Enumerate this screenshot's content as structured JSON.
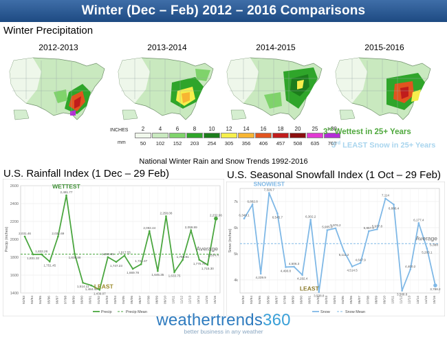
{
  "header": {
    "title": "Winter (Dec – Feb) 2012 – 2016 Comparisons"
  },
  "section_label": "Winter Precipitation",
  "maps": [
    {
      "year": "2012-2013"
    },
    {
      "year": "2013-2014"
    },
    {
      "year": "2014-2015"
    },
    {
      "year": "2015-2016"
    }
  ],
  "legend": {
    "inches_label": "INCHES",
    "mm_label": "mm",
    "bins": [
      {
        "in": "2",
        "mm": "50",
        "color": "#f1f8ec"
      },
      {
        "in": "4",
        "mm": "102",
        "color": "#c9e9bf"
      },
      {
        "in": "6",
        "mm": "152",
        "color": "#7fd36b"
      },
      {
        "in": "8",
        "mm": "203",
        "color": "#2fa52a"
      },
      {
        "in": "10",
        "mm": "254",
        "color": "#1c7d1c"
      },
      {
        "in": "12",
        "mm": "305",
        "color": "#f6ef4c"
      },
      {
        "in": "14",
        "mm": "356",
        "color": "#f7b533"
      },
      {
        "in": "16",
        "mm": "406",
        "color": "#e1541f"
      },
      {
        "in": "18",
        "mm": "457",
        "color": "#c01c1c"
      },
      {
        "in": "20",
        "mm": "508",
        "color": "#8a0f0f"
      },
      {
        "in": "25",
        "mm": "635",
        "color": "#e23ad3"
      },
      {
        "in": ">30",
        "mm": "762",
        "color": "#b32ed6"
      }
    ]
  },
  "notes": {
    "wettest_num": "3",
    "wettest_sup": "rd",
    "wettest_rest": " Wettest in 25+ Years",
    "snow_num": "3",
    "snow_sup": "rd",
    "snow_rest": " LEAST Snow in 25+ Years"
  },
  "national_heading": "National Winter Rain and Snow Trends 1992-2016",
  "rain_chart_title": "U.S. Rainfall Index (1 Dec – 29 Feb)",
  "snow_chart_title": "U.S. Seasonal Snowfall Index (1 Oct – 29 Feb)",
  "colors": {
    "rain": "#4aa63f",
    "snow": "#7fb8e6",
    "title_bar": "#2b5b96"
  },
  "chart_data": [
    {
      "type": "line",
      "title": "U.S. Rainfall Index (1 Dec – 29 Feb)",
      "ylabel": "Precip (inches)",
      "ylim": [
        1400,
        2600
      ],
      "yticks": [
        1400,
        1600,
        1800,
        2000,
        2200,
        2400,
        2600
      ],
      "categories": [
        "92/93",
        "93/94",
        "94/95",
        "95/96",
        "96/97",
        "97/98",
        "98/99",
        "99/00",
        "00/01",
        "01/02",
        "02/03",
        "03/04",
        "04/05",
        "05/06",
        "06/07",
        "07/08",
        "08/09",
        "09/10",
        "10/11",
        "11/12",
        "12/13",
        "13/14",
        "14/15",
        "15/16"
      ],
      "series": [
        {
          "name": "Precip",
          "values": [
            2031.46,
            1831.32,
            1832.28,
            1751.45,
            2031.69,
            2491.77,
            1839.88,
            1514.11,
            1484.48,
            1436.07,
            1800.55,
            1747.23,
            1817.55,
            1669.78,
            1721.37,
            2092.44,
            1645.35,
            2258.08,
            1633.75,
            1769.81,
            2099.89,
            1770.76,
            1715.3,
            2232.96
          ]
        },
        {
          "name": "Precip Mean",
          "values": [
            1834.4,
            1834.4,
            1834.4,
            1834.4,
            1834.4,
            1834.4,
            1834.4,
            1834.4,
            1834.4,
            1834.4,
            1834.4,
            1834.4,
            1834.4,
            1834.4,
            1834.4,
            1834.4,
            1834.4,
            1834.4,
            1834.4,
            1834.4,
            1834.4,
            1834.4,
            1834.4,
            1834.4
          ]
        }
      ],
      "point_labels": [
        "2,031.46",
        "1,831.32",
        "1,832.28",
        "1,751.45",
        "2,031.69",
        "2,491.77",
        "1,839.88",
        "1,514.11",
        "1,484.48",
        "1,436.07",
        "1,800.55",
        "1,747.23",
        "1,817.55",
        "1,669.78",
        "1,721.37",
        "2,092.44",
        "1,645.35",
        "2,258.08",
        "1,633.75",
        "1,769.81",
        "2,099.89",
        "1,770.76",
        "1,715.30",
        "2,232.96"
      ],
      "mean_label": "1,834.4",
      "annotations": {
        "high": "WETTEST",
        "low": "LEAST",
        "average": "Average"
      },
      "legend": [
        "Precip",
        "Precip Mean"
      ],
      "legend_position": "bottom",
      "grid": true
    },
    {
      "type": "line",
      "title": "U.S. Seasonal Snowfall Index (1 Oct – 29 Feb)",
      "ylabel": "Snow (inches)",
      "ylim": [
        3500,
        7500
      ],
      "yticks": [
        4000,
        5000,
        6000,
        7000
      ],
      "ytick_labels": [
        "4k",
        "5k",
        "6k",
        "7k"
      ],
      "categories": [
        "92/93",
        "93/94",
        "94/95",
        "95/96",
        "96/97",
        "97/98",
        "98/99",
        "99/00",
        "00/01",
        "01/02",
        "02/03",
        "03/04",
        "04/05",
        "05/06",
        "06/07",
        "07/08",
        "08/09",
        "09/10",
        "10/11",
        "11/12",
        "12/13",
        "13/14",
        "14/15",
        "15/16"
      ],
      "series": [
        {
          "name": "Snow",
          "values": [
            6349.1,
            6882.8,
            4239.9,
            7326.7,
            6545.7,
            4490.8,
            4506.3,
            4192.4,
            6302.2,
            3538.8,
            5905.9,
            5976.2,
            5111.2,
            4514.5,
            4647.9,
            5867.0,
            5937.8,
            7114.0,
            6886.4,
            3588.6,
            4400.2,
            6177.4,
            5203.1,
            3788.2
          ]
        },
        {
          "name": "Snow Mean",
          "values": [
            5388.0,
            5388.0,
            5388.0,
            5388.0,
            5388.0,
            5388.0,
            5388.0,
            5388.0,
            5388.0,
            5388.0,
            5388.0,
            5388.0,
            5388.0,
            5388.0,
            5388.0,
            5388.0,
            5388.0,
            5388.0,
            5388.0,
            5388.0,
            5388.0,
            5388.0,
            5388.0,
            5388.0
          ]
        }
      ],
      "point_labels": [
        "6,349.1",
        "6,882.8",
        "4,239.9",
        "7,326.7",
        "6,545.7",
        "4,490.8",
        "4,506.3",
        "4,192.4",
        "6,302.2",
        "3,538.8",
        "5,905.9",
        "5,976.2",
        "5,111.2",
        "4,514.5",
        "4,647.9",
        "5,867.0",
        "5,937.8",
        "7,114",
        "6,886.4",
        "3,588.6",
        "4,400.2",
        "6,177.4",
        "5,203.1",
        "3,788.2"
      ],
      "mean_label": "5,388",
      "annotations": {
        "high": "SNOWIEST",
        "low": "LEAST",
        "average": "Average"
      },
      "legend": [
        "Snow",
        "Snow Mean"
      ],
      "legend_position": "bottom",
      "grid": true
    }
  ],
  "logo": {
    "main": "weathertrends",
    "num": "360",
    "tagline": "better business in any weather"
  }
}
